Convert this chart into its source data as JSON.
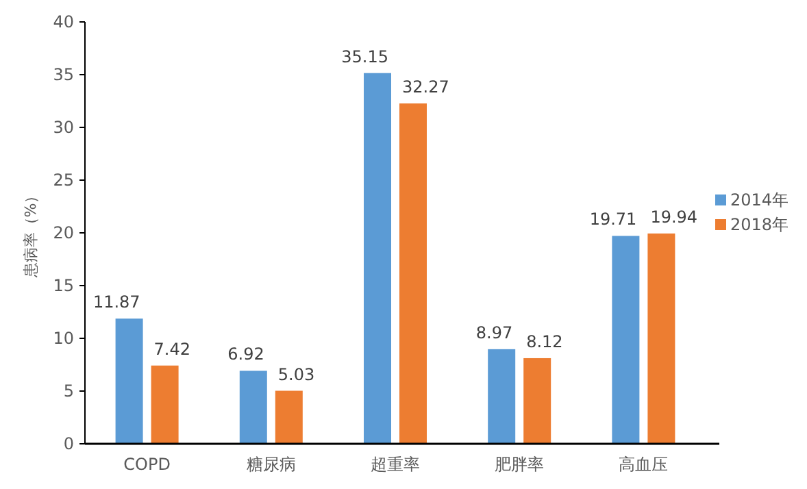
{
  "chart_data": {
    "type": "bar",
    "ylabel": "患病率（%）",
    "categories": [
      "COPD",
      "糖尿病",
      "超重率",
      "肥胖率",
      "高血压"
    ],
    "series": [
      {
        "name": "2014年",
        "color": "#5b9bd5",
        "values": [
          11.87,
          6.92,
          35.15,
          8.97,
          19.71
        ]
      },
      {
        "name": "2018年",
        "color": "#ed7d31",
        "values": [
          7.42,
          5.03,
          32.27,
          8.12,
          19.94
        ]
      }
    ],
    "ylim": [
      0,
      40
    ],
    "yticks": [
      0,
      5,
      10,
      15,
      20,
      25,
      30,
      35,
      40
    ],
    "data_labels": true,
    "grid": false,
    "legend": "right"
  }
}
